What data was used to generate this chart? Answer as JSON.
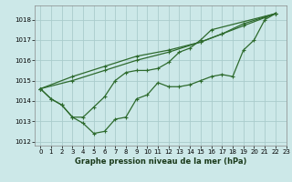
{
  "background_color": "#cce8e8",
  "grid_color": "#aacccc",
  "line_color": "#2d6a2d",
  "xlabel": "Graphe pression niveau de la mer (hPa)",
  "xlim": [
    -0.5,
    23
  ],
  "ylim": [
    1011.8,
    1018.7
  ],
  "yticks": [
    1012,
    1013,
    1014,
    1015,
    1016,
    1017,
    1018
  ],
  "xticks": [
    0,
    1,
    2,
    3,
    4,
    5,
    6,
    7,
    8,
    9,
    10,
    11,
    12,
    13,
    14,
    15,
    16,
    17,
    18,
    19,
    20,
    21,
    22,
    23
  ],
  "series": [
    [
      1014.6,
      1014.1,
      1013.8,
      1013.2,
      1012.9,
      1012.4,
      1012.5,
      1013.1,
      1013.2,
      1014.1,
      1014.3,
      1014.9,
      1014.7,
      1014.7,
      1014.8,
      1015.0,
      1015.2,
      1015.3,
      1015.2,
      1016.5,
      1017.0,
      1018.0,
      1018.3
    ],
    [
      1014.6,
      1014.1,
      1013.8,
      1013.2,
      1013.2,
      1013.7,
      1014.2,
      1015.0,
      1015.4,
      1015.5,
      1015.5,
      1015.6,
      1015.9,
      1016.4,
      1016.6,
      1017.0,
      1017.5,
      1018.3
    ],
    [
      1014.6,
      1015.2,
      1015.7,
      1016.2,
      1016.5,
      1016.9,
      1017.3,
      1017.7,
      1018.1,
      1018.3
    ],
    [
      1014.6,
      1015.0,
      1015.5,
      1016.0,
      1016.4,
      1016.9,
      1017.3,
      1017.8,
      1018.3
    ]
  ],
  "series_x": [
    [
      0,
      1,
      2,
      3,
      4,
      5,
      6,
      7,
      8,
      9,
      10,
      11,
      12,
      13,
      14,
      15,
      16,
      17,
      18,
      19,
      20,
      21,
      22
    ],
    [
      0,
      1,
      2,
      3,
      4,
      5,
      6,
      7,
      8,
      9,
      10,
      11,
      12,
      13,
      14,
      15,
      16,
      22
    ],
    [
      0,
      3,
      6,
      9,
      12,
      15,
      17,
      19,
      21,
      22
    ],
    [
      0,
      3,
      6,
      9,
      12,
      15,
      17,
      19,
      22
    ]
  ],
  "tick_fontsize": 5.0,
  "xlabel_fontsize": 6.0,
  "xlabel_color": "#1a3a1a",
  "line_width": 0.9,
  "marker_size": 3.0,
  "marker_ew": 0.8
}
